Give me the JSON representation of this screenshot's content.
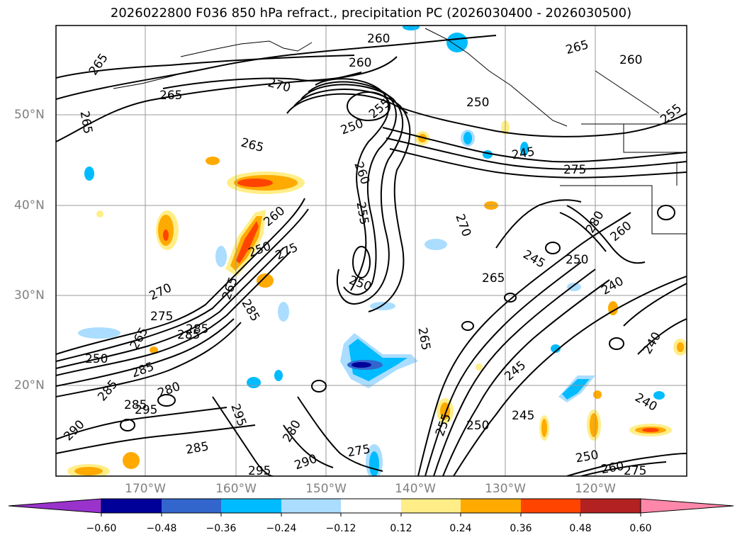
{
  "title": "2026022800 F036 850 hPa refract., precipitation PC (2026030400 - 2026030500)",
  "lat_labels": [
    "50°N",
    "40°N",
    "30°N",
    "20°N"
  ],
  "lon_labels": [
    "170°W",
    "160°W",
    "150°W",
    "140°W",
    "130°W",
    "120°W"
  ],
  "colorbar": {
    "ticks": [
      "−0.60",
      "−0.48",
      "−0.36",
      "−0.24",
      "−0.12",
      "0.12",
      "0.24",
      "0.36",
      "0.48",
      "0.60"
    ],
    "colors": [
      "#9933cc",
      "#000099",
      "#3366cc",
      "#00bbff",
      "#aaddff",
      "#ffffff",
      "#ffee88",
      "#ffaa00",
      "#ff4400",
      "#b22222",
      "#ff88aa"
    ]
  },
  "contour_labels": [
    "265",
    "260",
    "255",
    "250",
    "245",
    "240",
    "270",
    "275",
    "280",
    "285",
    "290",
    "295"
  ]
}
